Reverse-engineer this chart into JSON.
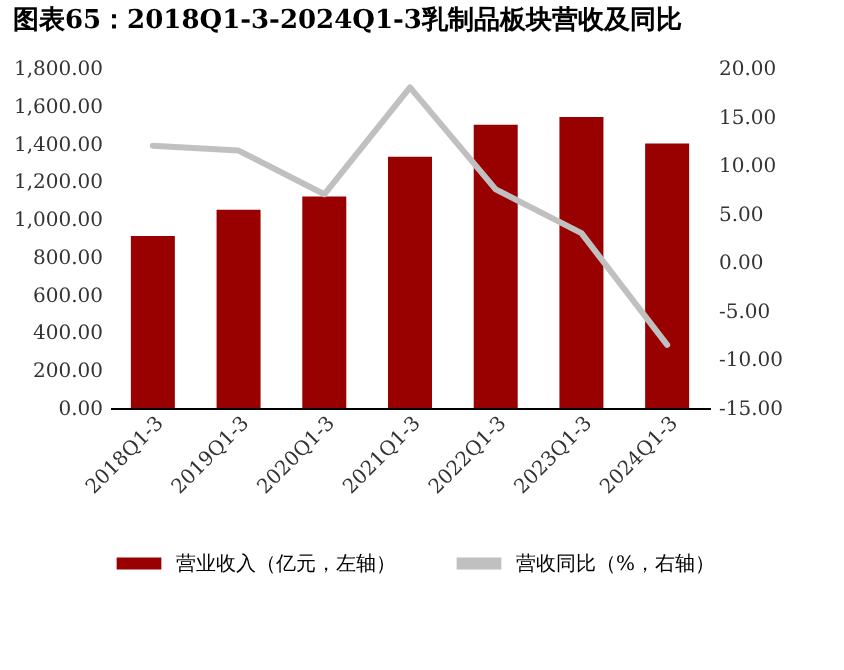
{
  "chart_data": {
    "type": "bar",
    "title": "图表65：2018Q1-3-2024Q1-3乳制品板块营收及同比",
    "categories": [
      "2018Q1-3",
      "2019Q1-3",
      "2020Q1-3",
      "2021Q1-3",
      "2022Q1-3",
      "2023Q1-3",
      "2024Q1-3"
    ],
    "series": [
      {
        "name": "营业收入（亿元，左轴）",
        "color": "#990000",
        "values": [
          910,
          1050,
          1120,
          1330,
          1500,
          1540,
          1400
        ]
      },
      {
        "name": "营收同比（%，右轴）",
        "type": "line",
        "axis": "y2",
        "color": "#c0c0c0",
        "values": [
          12,
          11.5,
          7,
          18,
          7.5,
          3,
          -8.5
        ]
      }
    ],
    "ylim": [
      0,
      1800
    ],
    "yticks": [
      {
        "value": 0,
        "label": "0.00"
      },
      {
        "value": 200,
        "label": "200.00"
      },
      {
        "value": 400,
        "label": "400.00"
      },
      {
        "value": 600,
        "label": "600.00"
      },
      {
        "value": 800,
        "label": "800.00"
      },
      {
        "value": 1000,
        "label": "1,000.00"
      },
      {
        "value": 1200,
        "label": "1,200.00"
      },
      {
        "value": 1400,
        "label": "1,400.00"
      },
      {
        "value": 1600,
        "label": "1,600.00"
      },
      {
        "value": 1800,
        "label": "1,800.00"
      }
    ],
    "y2lim": [
      -15,
      20
    ],
    "y2ticks": [
      {
        "value": -15,
        "label": "-15.00"
      },
      {
        "value": -10,
        "label": "-10.00"
      },
      {
        "value": -5,
        "label": "-5.00"
      },
      {
        "value": 0,
        "label": "0.00"
      },
      {
        "value": 5,
        "label": "5.00"
      },
      {
        "value": 10,
        "label": "10.00"
      },
      {
        "value": 15,
        "label": "15.00"
      },
      {
        "value": 20,
        "label": "20.00"
      }
    ],
    "grid": false,
    "legend": "bottom",
    "marker": "none"
  }
}
